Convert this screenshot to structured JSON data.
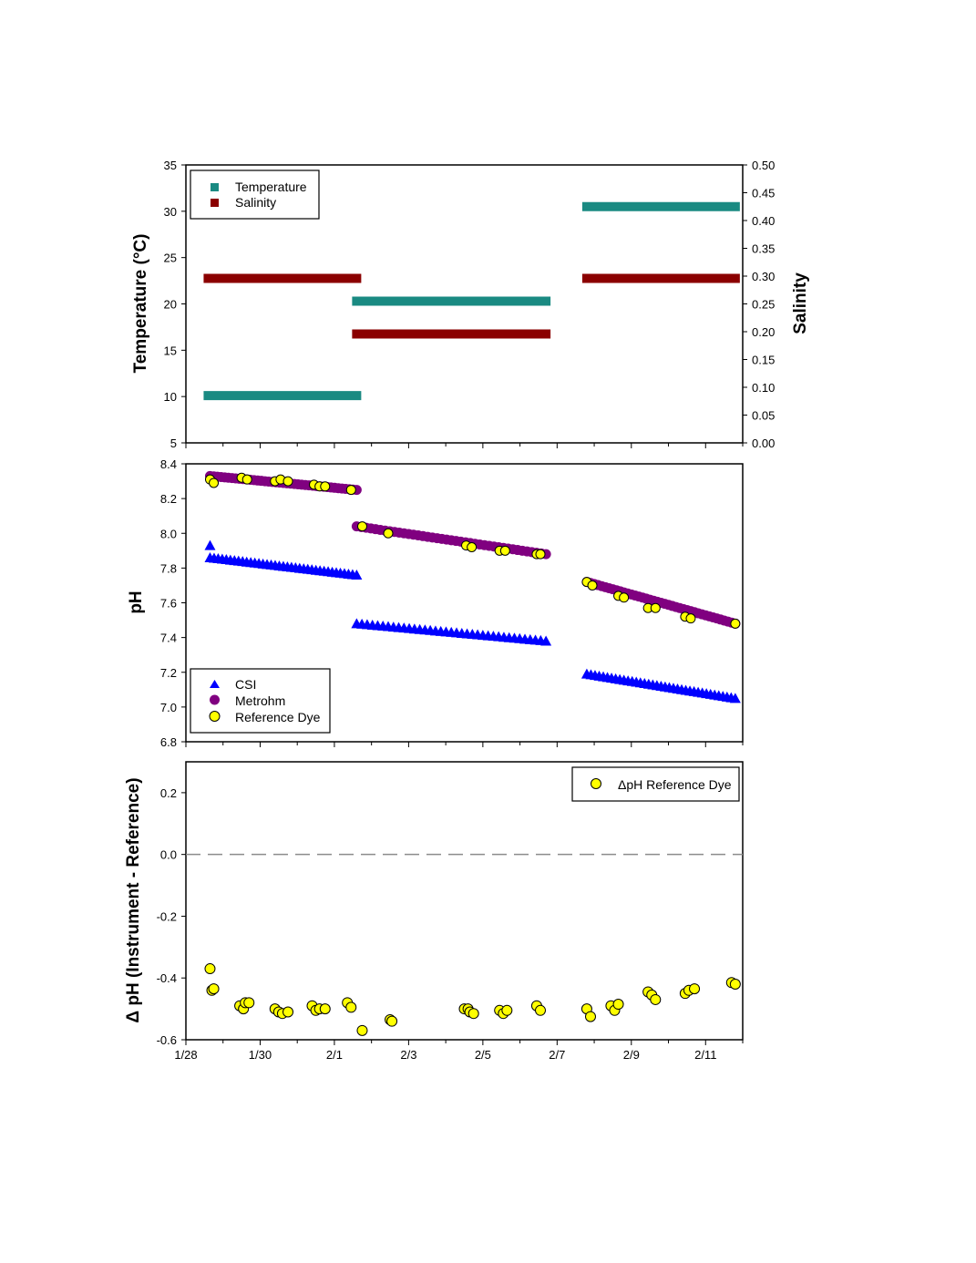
{
  "chart_data": [
    {
      "type": "line",
      "ylabel_left": "Temperature (°C)",
      "ylabel_right": "Salinity",
      "ylim_left": [
        5,
        35
      ],
      "yticks_left": [
        "5",
        "10",
        "15",
        "20",
        "25",
        "30",
        "35"
      ],
      "ylim_right": [
        0,
        0.5
      ],
      "yticks_right": [
        "0.00",
        "0.05",
        "0.10",
        "0.15",
        "0.20",
        "0.25",
        "0.30",
        "0.35",
        "0.40",
        "0.45",
        "0.50"
      ],
      "xlim": [
        0,
        15
      ],
      "legend_position": "top-left",
      "series": [
        {
          "name": "Temperature",
          "color": "#1a8a82",
          "axis": "left",
          "segments": [
            {
              "x": [
                0.6,
                4.6
              ],
              "y": [
                10.1,
                10.1
              ]
            },
            {
              "x": [
                4.6,
                9.7
              ],
              "y": [
                20.3,
                20.3
              ]
            },
            {
              "x": [
                10.8,
                14.8
              ],
              "y": [
                30.5,
                30.5
              ]
            }
          ]
        },
        {
          "name": "Salinity",
          "color": "#8b0000",
          "axis": "right",
          "segments": [
            {
              "x": [
                0.6,
                4.6
              ],
              "y": [
                0.296,
                0.296
              ]
            },
            {
              "x": [
                4.6,
                9.7
              ],
              "y": [
                0.196,
                0.196
              ]
            },
            {
              "x": [
                10.8,
                14.8
              ],
              "y": [
                0.296,
                0.296
              ]
            }
          ]
        }
      ]
    },
    {
      "type": "scatter",
      "ylabel": "pH",
      "ylim": [
        6.8,
        8.4
      ],
      "yticks": [
        "6.8",
        "7.0",
        "7.2",
        "7.4",
        "7.6",
        "7.8",
        "8.0",
        "8.2",
        "8.4"
      ],
      "xlim": [
        0,
        15
      ],
      "legend_position": "bottom-left",
      "series": [
        {
          "name": "CSI",
          "color": "#0000ff",
          "marker": "triangle",
          "outlier": {
            "x": 0.65,
            "y": 7.93
          },
          "segments": [
            {
              "x": [
                0.65,
                4.6
              ],
              "y": [
                7.86,
                7.76
              ]
            },
            {
              "x": [
                4.6,
                9.7
              ],
              "y": [
                7.48,
                7.38
              ]
            },
            {
              "x": [
                10.8,
                14.8
              ],
              "y": [
                7.19,
                7.05
              ]
            }
          ]
        },
        {
          "name": "Metrohm",
          "color": "#800080",
          "marker": "circle",
          "segments": [
            {
              "x": [
                0.65,
                4.6
              ],
              "y": [
                8.33,
                8.25
              ]
            },
            {
              "x": [
                4.6,
                9.7
              ],
              "y": [
                8.04,
                7.88
              ]
            },
            {
              "x": [
                10.8,
                14.8
              ],
              "y": [
                7.72,
                7.48
              ]
            }
          ]
        },
        {
          "name": "Reference Dye",
          "color": "#ffff00",
          "marker": "circle",
          "points": [
            [
              0.65,
              8.31
            ],
            [
              0.75,
              8.29
            ],
            [
              1.5,
              8.32
            ],
            [
              1.65,
              8.31
            ],
            [
              2.4,
              8.3
            ],
            [
              2.55,
              8.31
            ],
            [
              2.75,
              8.3
            ],
            [
              3.45,
              8.28
            ],
            [
              3.6,
              8.27
            ],
            [
              3.75,
              8.27
            ],
            [
              4.45,
              8.25
            ],
            [
              4.75,
              8.04
            ],
            [
              5.45,
              8.0
            ],
            [
              7.55,
              7.93
            ],
            [
              7.7,
              7.92
            ],
            [
              8.45,
              7.9
            ],
            [
              8.6,
              7.9
            ],
            [
              9.45,
              7.88
            ],
            [
              9.55,
              7.88
            ],
            [
              10.8,
              7.72
            ],
            [
              10.95,
              7.7
            ],
            [
              11.65,
              7.64
            ],
            [
              11.8,
              7.63
            ],
            [
              12.45,
              7.57
            ],
            [
              12.65,
              7.57
            ],
            [
              13.45,
              7.52
            ],
            [
              13.6,
              7.51
            ],
            [
              14.8,
              7.48
            ]
          ]
        }
      ]
    },
    {
      "type": "scatter",
      "ylabel": "Δ pH (Instrument - Reference)",
      "ylim": [
        -0.6,
        0.3
      ],
      "yticks": [
        "-0.6",
        "-0.4",
        "-0.2",
        "0.0",
        "0.2"
      ],
      "xlim": [
        0,
        15
      ],
      "xticks": [
        "1/28",
        "1/30",
        "2/1",
        "2/3",
        "2/5",
        "2/7",
        "2/9",
        "2/11"
      ],
      "reference_line": 0,
      "legend_position": "top-right",
      "series": [
        {
          "name": "ΔpH Reference Dye",
          "color": "#ffff00",
          "marker": "circle",
          "points": [
            [
              0.65,
              -0.37
            ],
            [
              0.7,
              -0.44
            ],
            [
              0.75,
              -0.435
            ],
            [
              1.45,
              -0.49
            ],
            [
              1.55,
              -0.5
            ],
            [
              1.6,
              -0.48
            ],
            [
              1.7,
              -0.48
            ],
            [
              2.4,
              -0.5
            ],
            [
              2.5,
              -0.51
            ],
            [
              2.6,
              -0.515
            ],
            [
              2.75,
              -0.51
            ],
            [
              3.4,
              -0.49
            ],
            [
              3.5,
              -0.505
            ],
            [
              3.6,
              -0.5
            ],
            [
              3.75,
              -0.5
            ],
            [
              4.35,
              -0.48
            ],
            [
              4.45,
              -0.495
            ],
            [
              4.75,
              -0.57
            ],
            [
              5.5,
              -0.535
            ],
            [
              5.55,
              -0.54
            ],
            [
              7.5,
              -0.5
            ],
            [
              7.6,
              -0.5
            ],
            [
              7.65,
              -0.51
            ],
            [
              7.75,
              -0.515
            ],
            [
              8.45,
              -0.505
            ],
            [
              8.55,
              -0.515
            ],
            [
              8.65,
              -0.505
            ],
            [
              9.45,
              -0.49
            ],
            [
              9.55,
              -0.505
            ],
            [
              10.8,
              -0.5
            ],
            [
              10.9,
              -0.525
            ],
            [
              11.45,
              -0.49
            ],
            [
              11.55,
              -0.505
            ],
            [
              11.65,
              -0.485
            ],
            [
              12.45,
              -0.445
            ],
            [
              12.55,
              -0.455
            ],
            [
              12.65,
              -0.47
            ],
            [
              13.45,
              -0.45
            ],
            [
              13.55,
              -0.44
            ],
            [
              13.7,
              -0.435
            ],
            [
              14.7,
              -0.415
            ],
            [
              14.8,
              -0.42
            ]
          ]
        }
      ]
    }
  ]
}
